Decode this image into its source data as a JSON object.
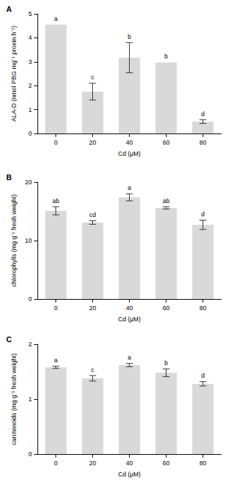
{
  "chart_data": [
    {
      "type": "bar",
      "title": "A",
      "x_label": "Cd (µM)",
      "y_label": "ALA-D (nmol PBG mg⁻¹ proein h⁻¹)",
      "categories": [
        "0",
        "20",
        "40",
        "60",
        "80"
      ],
      "values": [
        4.55,
        1.75,
        3.17,
        2.97,
        0.5
      ],
      "errors": [
        null,
        0.35,
        0.63,
        null,
        0.08
      ],
      "annotations": [
        "a",
        "c",
        "b",
        "b",
        "d"
      ],
      "color": "#d9d9d9",
      "ylim": [
        0,
        5
      ],
      "yticks": [
        0,
        1,
        2,
        3,
        4,
        5
      ],
      "grid": false
    },
    {
      "type": "bar",
      "title": "B",
      "x_label": "Cd (µM)",
      "y_label": "chlorophylls (mg g⁻¹ fresh weight)",
      "categories": [
        "0",
        "20",
        "40",
        "60",
        "80"
      ],
      "values": [
        15.1,
        13.1,
        17.4,
        15.6,
        12.7
      ],
      "errors": [
        0.7,
        0.3,
        0.6,
        0.2,
        0.8
      ],
      "annotations": [
        "ab",
        "cd",
        "a",
        "ab",
        "d"
      ],
      "color": "#d9d9d9",
      "ylim": [
        0,
        20
      ],
      "yticks": [
        0,
        10,
        20
      ],
      "grid": false
    },
    {
      "type": "bar",
      "title": "C",
      "x_label": "Cd (µM)",
      "y_label": "carotenoids (mg g⁻¹ fresh weight)",
      "categories": [
        "0",
        "20",
        "40",
        "60",
        "80"
      ],
      "values": [
        1.58,
        1.38,
        1.62,
        1.48,
        1.28
      ],
      "errors": [
        0.02,
        0.05,
        0.03,
        0.07,
        0.04
      ],
      "annotations": [
        "a",
        "c",
        "a",
        "b",
        "d"
      ],
      "color": "#d9d9d9",
      "ylim": [
        0,
        2
      ],
      "yticks": [
        0,
        1,
        2
      ],
      "grid": false
    }
  ]
}
